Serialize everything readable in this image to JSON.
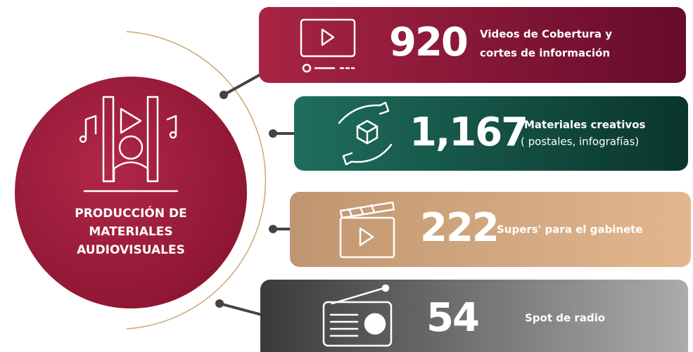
{
  "center": {
    "title_lines": [
      "PRODUCCIÓN DE",
      "MATERIALES",
      "AUDIOVISUALES"
    ]
  },
  "items": [
    {
      "number": "920",
      "label_lines": [
        "Videos de Cobertura y",
        "cortes de información"
      ]
    },
    {
      "number": "1,167",
      "label_lines": [
        "Materiales creativos",
        "( postales, infografías)"
      ]
    },
    {
      "number": "222",
      "label_lines": [
        "Supers' para el gabinete"
      ]
    },
    {
      "number": "54",
      "label_lines": [
        "Spot de radio"
      ]
    }
  ]
}
